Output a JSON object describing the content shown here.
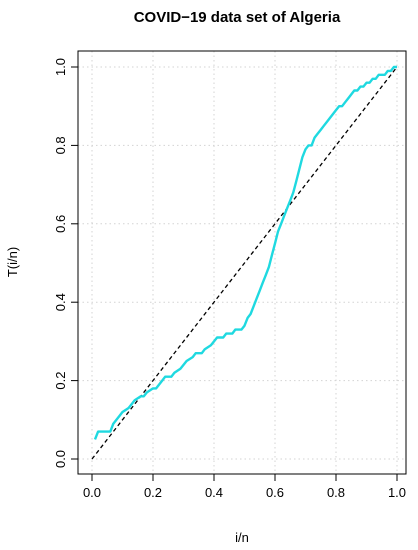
{
  "chart_data": {
    "type": "line",
    "title": "COVID−19 data set of Algeria",
    "xlabel": "i/n",
    "ylabel": "T(i/n)",
    "xlim": [
      0.0,
      1.0
    ],
    "ylim": [
      0.0,
      1.0
    ],
    "x_ticks": [
      "0.0",
      "0.2",
      "0.4",
      "0.6",
      "0.8",
      "1.0"
    ],
    "y_ticks": [
      "0.0",
      "0.2",
      "0.4",
      "0.6",
      "0.8",
      "1.0"
    ],
    "grid": true,
    "colors": {
      "curve": "#1fd9e0",
      "reference": "#000000",
      "grid": "#d3d3d3"
    },
    "series": [
      {
        "style": "solid",
        "x": [
          0.01,
          0.02,
          0.04,
          0.06,
          0.07,
          0.09,
          0.1,
          0.12,
          0.13,
          0.14,
          0.16,
          0.17,
          0.18,
          0.2,
          0.21,
          0.23,
          0.24,
          0.26,
          0.27,
          0.29,
          0.3,
          0.31,
          0.33,
          0.34,
          0.36,
          0.37,
          0.39,
          0.4,
          0.41,
          0.43,
          0.44,
          0.46,
          0.47,
          0.49,
          0.5,
          0.51,
          0.52,
          0.53,
          0.54,
          0.55,
          0.56,
          0.57,
          0.58,
          0.59,
          0.6,
          0.61,
          0.62,
          0.63,
          0.64,
          0.65,
          0.66,
          0.67,
          0.68,
          0.69,
          0.7,
          0.71,
          0.72,
          0.73,
          0.74,
          0.75,
          0.76,
          0.77,
          0.78,
          0.79,
          0.8,
          0.81,
          0.82,
          0.83,
          0.84,
          0.85,
          0.86,
          0.87,
          0.88,
          0.89,
          0.9,
          0.91,
          0.92,
          0.93,
          0.94,
          0.95,
          0.96,
          0.97,
          0.98,
          0.99,
          1.0
        ],
        "y": [
          0.05,
          0.07,
          0.07,
          0.07,
          0.09,
          0.11,
          0.12,
          0.13,
          0.14,
          0.15,
          0.16,
          0.16,
          0.17,
          0.18,
          0.18,
          0.2,
          0.21,
          0.21,
          0.22,
          0.23,
          0.24,
          0.25,
          0.26,
          0.27,
          0.27,
          0.28,
          0.29,
          0.3,
          0.31,
          0.31,
          0.32,
          0.32,
          0.33,
          0.33,
          0.34,
          0.36,
          0.37,
          0.39,
          0.41,
          0.43,
          0.45,
          0.47,
          0.49,
          0.52,
          0.55,
          0.58,
          0.6,
          0.62,
          0.64,
          0.66,
          0.68,
          0.71,
          0.74,
          0.77,
          0.79,
          0.8,
          0.8,
          0.82,
          0.83,
          0.84,
          0.85,
          0.86,
          0.87,
          0.88,
          0.89,
          0.9,
          0.9,
          0.91,
          0.92,
          0.93,
          0.94,
          0.94,
          0.95,
          0.95,
          0.96,
          0.96,
          0.97,
          0.97,
          0.98,
          0.98,
          0.98,
          0.99,
          0.99,
          1.0,
          1.0
        ]
      },
      {
        "style": "dashed",
        "x": [
          0.0,
          1.0
        ],
        "y": [
          0.0,
          1.0
        ]
      }
    ]
  }
}
